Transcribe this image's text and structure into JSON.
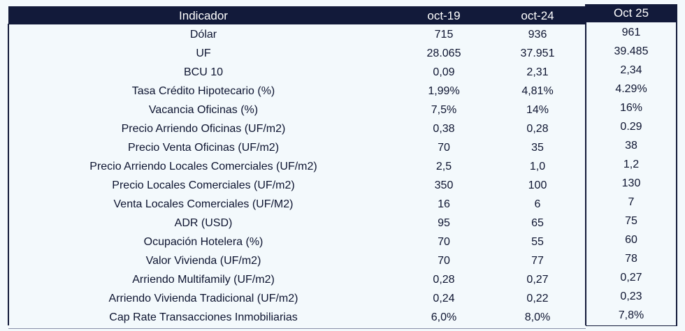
{
  "table": {
    "headers": [
      "Indicador",
      "oct-19",
      "oct-24",
      "Oct 25"
    ],
    "rows": [
      [
        "Dólar",
        "715",
        "936",
        "961"
      ],
      [
        "UF",
        "28.065",
        "37.951",
        "39.485"
      ],
      [
        "BCU 10",
        "0,09",
        "2,31",
        "2,34"
      ],
      [
        "Tasa Crédito Hipotecario (%)",
        "1,99%",
        "4,81%",
        "4.29%"
      ],
      [
        "Vacancia Oficinas (%)",
        "7,5%",
        "14%",
        "16%"
      ],
      [
        "Precio Arriendo Oficinas (UF/m2)",
        "0,38",
        "0,28",
        "0.29"
      ],
      [
        "Precio Venta Oficinas (UF/m2)",
        "70",
        "35",
        "38"
      ],
      [
        "Precio Arriendo Locales Comerciales (UF/m2)",
        "2,5",
        "1,0",
        "1,2"
      ],
      [
        "Precio Locales Comerciales (UF/m2)",
        "350",
        "100",
        "130"
      ],
      [
        "Venta Locales Comerciales (UF/M2)",
        "16",
        "6",
        "7"
      ],
      [
        "ADR (USD)",
        "95",
        "65",
        "75"
      ],
      [
        "Ocupación Hotelera (%)",
        "70",
        "55",
        "60"
      ],
      [
        "Valor Vivienda (UF/m2)",
        "70",
        "77",
        "78"
      ],
      [
        "Arriendo Multifamily (UF/m2)",
        "0,28",
        "0,27",
        "0,27"
      ],
      [
        "Arriendo Vivienda Tradicional (UF/m2)",
        "0,24",
        "0,22",
        "0,23"
      ],
      [
        "Cap Rate Transacciones Inmobiliarias",
        "6,0%",
        "8,0%",
        "7,8%"
      ]
    ]
  }
}
